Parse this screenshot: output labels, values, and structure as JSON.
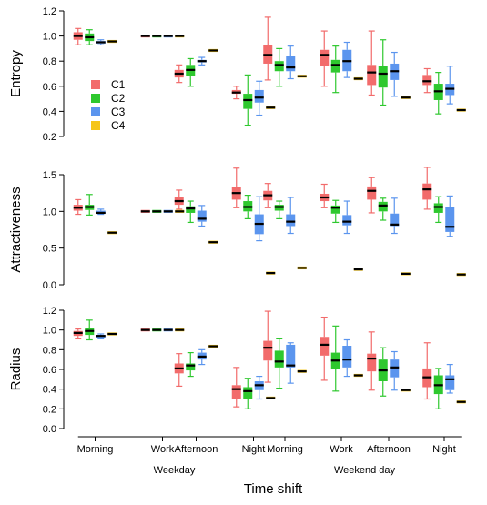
{
  "chart_data": {
    "type": "boxplot",
    "xlabel": "Time shift",
    "categories": [
      "Morning",
      "Work",
      "Afternoon",
      "Night",
      "Morning",
      "Work",
      "Afternoon",
      "Night"
    ],
    "groups": [
      {
        "label": "Weekday",
        "categories": [
          0,
          1,
          2,
          3
        ]
      },
      {
        "label": "Weekend day",
        "categories": [
          4,
          5,
          6,
          7
        ]
      }
    ],
    "series": [
      {
        "name": "C1",
        "color": "#f26b6b"
      },
      {
        "name": "C2",
        "color": "#2ec82e"
      },
      {
        "name": "C3",
        "color": "#5b95ee"
      },
      {
        "name": "C4",
        "color": "#f5c518"
      }
    ],
    "legend_position": "inside-left of top panel",
    "panels": [
      {
        "ylabel": "Entropy",
        "ylim": [
          0.2,
          1.2
        ],
        "yticks": [
          "0.2",
          "0.4",
          "0.6",
          "0.8",
          "1.0",
          "1.2"
        ],
        "yticks_values": [
          0.2,
          0.4,
          0.6,
          0.8,
          1.0,
          1.2
        ],
        "boxes": [
          [
            [
              0.93,
              0.97,
              1.0,
              1.03,
              1.06
            ],
            [
              0.93,
              0.96,
              0.99,
              1.02,
              1.05
            ],
            [
              0.93,
              0.94,
              0.95,
              0.96,
              0.97
            ],
            [
              0.95,
              0.955,
              0.957,
              0.96,
              0.965
            ]
          ],
          [
            [
              0.995,
              0.997,
              1.0,
              1.003,
              1.005
            ],
            [
              0.995,
              0.997,
              1.0,
              1.003,
              1.005
            ],
            [
              0.995,
              0.997,
              1.0,
              1.003,
              1.005
            ],
            [
              0.995,
              0.997,
              1.0,
              1.003,
              1.005
            ]
          ],
          [
            [
              0.63,
              0.67,
              0.7,
              0.73,
              0.77
            ],
            [
              0.6,
              0.68,
              0.73,
              0.77,
              0.82
            ],
            [
              0.77,
              0.79,
              0.8,
              0.81,
              0.83
            ],
            [
              0.875,
              0.88,
              0.885,
              0.89,
              0.895
            ]
          ],
          [
            [
              0.5,
              0.54,
              0.55,
              0.57,
              0.6
            ],
            [
              0.29,
              0.42,
              0.49,
              0.54,
              0.69
            ],
            [
              0.37,
              0.47,
              0.51,
              0.57,
              0.64
            ],
            [
              0.425,
              0.428,
              0.43,
              0.432,
              0.435
            ]
          ],
          [
            [
              0.65,
              0.78,
              0.85,
              0.93,
              1.15
            ],
            [
              0.6,
              0.72,
              0.77,
              0.8,
              0.9
            ],
            [
              0.66,
              0.72,
              0.75,
              0.84,
              0.92
            ],
            [
              0.675,
              0.678,
              0.68,
              0.682,
              0.685
            ]
          ],
          [
            [
              0.6,
              0.76,
              0.85,
              0.89,
              1.04
            ],
            [
              0.55,
              0.71,
              0.77,
              0.81,
              0.92
            ],
            [
              0.67,
              0.72,
              0.8,
              0.89,
              0.95
            ],
            [
              0.655,
              0.658,
              0.66,
              0.662,
              0.665
            ]
          ],
          [
            [
              0.53,
              0.61,
              0.71,
              0.77,
              1.04
            ],
            [
              0.45,
              0.59,
              0.7,
              0.76,
              0.97
            ],
            [
              0.52,
              0.65,
              0.72,
              0.78,
              0.87
            ],
            [
              0.505,
              0.508,
              0.51,
              0.512,
              0.515
            ]
          ],
          [
            [
              0.55,
              0.61,
              0.64,
              0.69,
              0.74
            ],
            [
              0.38,
              0.49,
              0.56,
              0.62,
              0.71
            ],
            [
              0.46,
              0.53,
              0.58,
              0.62,
              0.76
            ],
            [
              0.405,
              0.407,
              0.41,
              0.412,
              0.415
            ]
          ]
        ]
      },
      {
        "ylabel": "Attractiveness",
        "ylim": [
          0.0,
          1.5
        ],
        "yticks": [
          "0.0",
          "0.5",
          "1.0",
          "1.5"
        ],
        "yticks_values": [
          0.0,
          0.5,
          1.0,
          1.5
        ],
        "boxes": [
          [
            [
              0.96,
              1.01,
              1.05,
              1.09,
              1.16
            ],
            [
              0.95,
              1.02,
              1.06,
              1.09,
              1.23
            ],
            [
              0.96,
              0.97,
              0.98,
              1.01,
              1.03
            ],
            [
              0.705,
              0.708,
              0.71,
              0.712,
              0.715
            ]
          ],
          [
            [
              0.995,
              0.997,
              1.0,
              1.003,
              1.005
            ],
            [
              0.995,
              0.997,
              1.0,
              1.003,
              1.005
            ],
            [
              0.995,
              0.997,
              1.0,
              1.003,
              1.005
            ],
            [
              0.995,
              0.997,
              1.0,
              1.003,
              1.005
            ]
          ],
          [
            [
              1.03,
              1.09,
              1.14,
              1.19,
              1.29
            ],
            [
              0.85,
              0.98,
              1.04,
              1.07,
              1.14
            ],
            [
              0.8,
              0.86,
              0.9,
              1.01,
              1.08
            ],
            [
              0.575,
              0.578,
              0.58,
              0.582,
              0.585
            ]
          ],
          [
            [
              1.05,
              1.16,
              1.25,
              1.33,
              1.59
            ],
            [
              0.9,
              1.0,
              1.06,
              1.14,
              1.22
            ],
            [
              0.6,
              0.69,
              0.83,
              0.96,
              1.2
            ],
            [
              0.155,
              0.158,
              0.16,
              0.162,
              0.165
            ]
          ],
          [
            [
              1.05,
              1.15,
              1.22,
              1.28,
              1.38
            ],
            [
              0.9,
              1.01,
              1.06,
              1.09,
              1.14
            ],
            [
              0.7,
              0.8,
              0.86,
              0.96,
              1.19
            ],
            [
              0.225,
              0.228,
              0.23,
              0.232,
              0.235
            ]
          ],
          [
            [
              1.05,
              1.14,
              1.19,
              1.24,
              1.37
            ],
            [
              0.85,
              0.97,
              1.05,
              1.08,
              1.15
            ],
            [
              0.7,
              0.81,
              0.86,
              0.95,
              1.14
            ],
            [
              0.205,
              0.208,
              0.21,
              0.212,
              0.215
            ]
          ],
          [
            [
              0.98,
              1.16,
              1.28,
              1.34,
              1.46
            ],
            [
              0.88,
              1.0,
              1.08,
              1.13,
              1.18
            ],
            [
              0.7,
              0.8,
              0.82,
              0.97,
              1.18
            ],
            [
              0.145,
              0.148,
              0.15,
              0.152,
              0.155
            ]
          ],
          [
            [
              1.03,
              1.16,
              1.3,
              1.38,
              1.6
            ],
            [
              0.85,
              0.98,
              1.06,
              1.11,
              1.2
            ],
            [
              0.66,
              0.72,
              0.79,
              1.06,
              1.21
            ],
            [
              0.135,
              0.138,
              0.14,
              0.142,
              0.145
            ]
          ]
        ]
      },
      {
        "ylabel": "Radius",
        "ylim": [
          0.0,
          1.2
        ],
        "yticks": [
          "0.0",
          "0.2",
          "0.4",
          "0.6",
          "0.8",
          "1.0",
          "1.2"
        ],
        "yticks_values": [
          0.0,
          0.2,
          0.4,
          0.6,
          0.8,
          1.0,
          1.2
        ],
        "boxes": [
          [
            [
              0.91,
              0.94,
              0.97,
              0.99,
              1.01
            ],
            [
              0.9,
              0.95,
              0.99,
              1.02,
              1.1
            ],
            [
              0.91,
              0.92,
              0.94,
              0.95,
              0.96
            ],
            [
              0.955,
              0.957,
              0.96,
              0.962,
              0.965
            ]
          ],
          [
            [
              0.995,
              0.997,
              1.0,
              1.003,
              1.005
            ],
            [
              0.995,
              0.997,
              1.0,
              1.003,
              1.005
            ],
            [
              0.995,
              0.997,
              1.0,
              1.003,
              1.005
            ],
            [
              0.995,
              0.997,
              1.0,
              1.003,
              1.005
            ]
          ],
          [
            [
              0.43,
              0.56,
              0.61,
              0.66,
              0.76
            ],
            [
              0.53,
              0.59,
              0.64,
              0.66,
              0.77
            ],
            [
              0.65,
              0.7,
              0.73,
              0.77,
              0.8
            ],
            [
              0.83,
              0.832,
              0.835,
              0.837,
              0.84
            ]
          ],
          [
            [
              0.22,
              0.3,
              0.4,
              0.44,
              0.62
            ],
            [
              0.2,
              0.3,
              0.38,
              0.42,
              0.51
            ],
            [
              0.3,
              0.39,
              0.44,
              0.48,
              0.53
            ],
            [
              0.305,
              0.308,
              0.31,
              0.312,
              0.315
            ]
          ],
          [
            [
              0.47,
              0.69,
              0.82,
              0.89,
              1.19
            ],
            [
              0.41,
              0.62,
              0.68,
              0.79,
              0.91
            ],
            [
              0.46,
              0.62,
              0.64,
              0.85,
              0.87
            ],
            [
              0.575,
              0.578,
              0.58,
              0.582,
              0.585
            ]
          ],
          [
            [
              0.49,
              0.74,
              0.85,
              0.93,
              1.13
            ],
            [
              0.38,
              0.6,
              0.69,
              0.77,
              1.04
            ],
            [
              0.53,
              0.62,
              0.7,
              0.84,
              0.9
            ],
            [
              0.535,
              0.538,
              0.54,
              0.542,
              0.545
            ]
          ],
          [
            [
              0.39,
              0.58,
              0.71,
              0.76,
              0.98
            ],
            [
              0.33,
              0.48,
              0.59,
              0.7,
              0.82
            ],
            [
              0.39,
              0.52,
              0.62,
              0.7,
              0.78
            ],
            [
              0.385,
              0.388,
              0.39,
              0.392,
              0.395
            ]
          ],
          [
            [
              0.3,
              0.42,
              0.52,
              0.61,
              0.87
            ],
            [
              0.2,
              0.35,
              0.44,
              0.54,
              0.61
            ],
            [
              0.36,
              0.39,
              0.5,
              0.54,
              0.65
            ],
            [
              0.265,
              0.268,
              0.27,
              0.272,
              0.275
            ]
          ]
        ]
      }
    ]
  }
}
